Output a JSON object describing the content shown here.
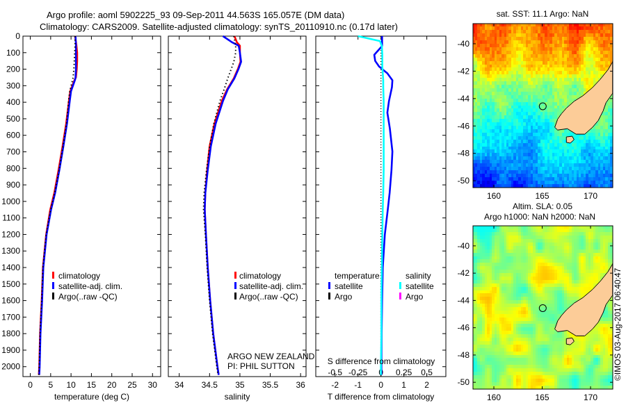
{
  "title": {
    "line1": "Argo profile: aoml 5902225_93 09-Sep-2011 44.563S 165.057E (DM data)",
    "line2": "Climatology: CARS2009. Satellite-adjusted climatology: synTS_20110910.nc (0.17d later)"
  },
  "annotation": {
    "program": "ARGO NEW ZEALAND",
    "pi": "PI: PHIL SUTTON",
    "credit": "©IMOS 03-Aug-2017 06:40:47"
  },
  "colors": {
    "climatology": "#ff0000",
    "satellite": "#0000ff",
    "argo": "#000000",
    "salinity_satellite": "#00ffff",
    "salinity_argo": "#ff00ff",
    "land": "#fccc98"
  },
  "chart_data": [
    {
      "type": "line",
      "id": "temperature",
      "xlabel": "temperature (deg C)",
      "ylabel": "",
      "xlim": [
        -1.8,
        32
      ],
      "ylim": [
        2060,
        0
      ],
      "xticks": [
        0,
        5,
        10,
        15,
        20,
        25,
        30
      ],
      "yticks": [
        0,
        100,
        200,
        300,
        400,
        500,
        600,
        700,
        800,
        900,
        1000,
        1100,
        1200,
        1300,
        1400,
        1500,
        1600,
        1700,
        1800,
        1900,
        2000
      ],
      "legend": [
        "climatology",
        "satellite-adj. clim.",
        "Argo(..raw -QC)"
      ],
      "legend_placement": "center-left",
      "depth": [
        0,
        50,
        100,
        150,
        200,
        250,
        263,
        333,
        390,
        530,
        670,
        808,
        948,
        1050,
        1200,
        1400,
        1600,
        1800,
        2000,
        2050
      ],
      "series": [
        {
          "name": "climatology",
          "color": "#ff0000",
          "values": [
            11.0,
            11.3,
            11.5,
            11.5,
            11.4,
            11.2,
            10.9,
            9.8,
            9.5,
            8.8,
            7.9,
            6.95,
            5.9,
            4.9,
            3.9,
            3.1,
            2.8,
            2.4,
            2.2,
            2.1
          ]
        },
        {
          "name": "satellite-adj. clim.",
          "color": "#0000ff",
          "values": [
            11.1,
            11.2,
            11.2,
            11.2,
            11.2,
            11.1,
            11.0,
            10.0,
            9.7,
            9.0,
            8.1,
            7.15,
            6.1,
            5.1,
            4.0,
            3.2,
            2.9,
            2.5,
            2.3,
            2.2
          ]
        },
        {
          "name": "Argo(..raw -QC)",
          "color": "#000000",
          "dotted": true,
          "values": [
            11.0,
            11.0,
            10.9,
            10.8,
            10.7,
            10.5,
            10.4,
            9.7,
            9.4,
            8.9,
            8.0,
            7.1,
            6.0,
            5.0,
            3.9,
            3.1,
            2.8,
            2.4,
            2.2,
            2.1
          ]
        }
      ]
    },
    {
      "type": "line",
      "id": "salinity",
      "xlabel": "salinity",
      "xlim": [
        33.82,
        36.09
      ],
      "ylim": [
        2060,
        0
      ],
      "xticks": [
        34,
        34.5,
        35,
        35.5,
        36
      ],
      "legend": [
        "climatology",
        "satellite-adj. clim.",
        "Argo(..raw -QC)"
      ],
      "legend_placement": "center-left",
      "depth": [
        0,
        37,
        58,
        100,
        155,
        196,
        255,
        322,
        393,
        530,
        668,
        810,
        948,
        1048,
        1200,
        1400,
        1600,
        1800,
        2000,
        2050
      ],
      "series": [
        {
          "name": "climatology",
          "color": "#ff0000",
          "values": [
            34.91,
            34.95,
            35.0,
            35.0,
            35.01,
            34.97,
            34.9,
            34.79,
            34.7,
            34.58,
            34.5,
            34.46,
            34.43,
            34.42,
            34.44,
            34.47,
            34.51,
            34.56,
            34.63,
            34.65
          ]
        },
        {
          "name": "satellite-adj. clim.",
          "color": "#0000ff",
          "values": [
            34.72,
            34.87,
            34.98,
            35.0,
            35.02,
            34.98,
            34.91,
            34.8,
            34.72,
            34.6,
            34.52,
            34.47,
            34.43,
            34.42,
            34.44,
            34.47,
            34.51,
            34.56,
            34.63,
            34.65
          ]
        },
        {
          "name": "Argo(..raw -QC)",
          "color": "#000000",
          "dotted": true,
          "values": [
            34.9,
            34.92,
            34.93,
            34.93,
            34.9,
            34.86,
            34.8,
            34.74,
            34.67,
            34.57,
            34.5,
            34.45,
            34.41,
            34.4,
            34.43,
            34.46,
            34.5,
            34.55,
            34.62,
            34.64
          ]
        }
      ]
    },
    {
      "type": "line",
      "id": "difference",
      "xlabel": "T difference from climatology",
      "x2label": "S difference from climatology",
      "xlim": [
        -2.84,
        2.83
      ],
      "ylim": [
        2060,
        0
      ],
      "xticks": [
        -2,
        -1,
        0,
        1,
        2
      ],
      "x2ticks": [
        "-0.5",
        "-0.25",
        "0",
        "0.25",
        "0.5"
      ],
      "x2tick_values": [
        -0.5,
        -0.25,
        0,
        0.25,
        0.5
      ],
      "s_to_t_scale": 4,
      "legend_headers": [
        "temperature",
        "salinity"
      ],
      "legend": [
        "satellite",
        "Argo",
        "satellite",
        "Argo"
      ],
      "depth": [
        0,
        30,
        60,
        113,
        150,
        184,
        225,
        267,
        309,
        393,
        463,
        560,
        698,
        810,
        948,
        1048,
        1200,
        1400,
        1600,
        1800,
        2000,
        2050
      ],
      "series": [
        {
          "name": "T satellite",
          "color": "#0000ff",
          "values": [
            0.05,
            0.05,
            0.05,
            -0.29,
            -0.25,
            -0.08,
            0.28,
            0.5,
            0.48,
            0.35,
            0.28,
            0.39,
            0.5,
            0.46,
            0.38,
            0.3,
            0.17,
            0.08,
            0.05,
            0.03,
            0.02,
            0.02
          ]
        },
        {
          "name": "S satellite",
          "color": "#00ffff",
          "salinity": true,
          "values": [
            -0.25,
            -0.01,
            0.01,
            0.015,
            0.015,
            0.015,
            0.02,
            0.025,
            0.025,
            0.03,
            0.03,
            0.03,
            0.03,
            0.03,
            0.025,
            0.02,
            0.015,
            0.01,
            0.005,
            0.005,
            0.0,
            0.0
          ]
        }
      ]
    },
    {
      "type": "heatmap",
      "id": "sst_map",
      "title": "sat. SST: 11.1 Argo: NaN",
      "xlim": [
        157.84,
        172.3
      ],
      "ylim": [
        -50.5,
        -38.53
      ],
      "xticks": [
        160,
        165,
        170
      ],
      "yticks": [
        -40,
        -42,
        -44,
        -46,
        -48,
        -50
      ],
      "float_position": [
        165.057,
        -44.563
      ],
      "colormap": "jet",
      "value_range_degC": [
        7,
        15
      ]
    },
    {
      "type": "heatmap",
      "id": "sla_map",
      "title": "Altim. SLA: 0.05",
      "subtitle": "Argo h1000: NaN h2000: NaN",
      "xlim": [
        157.84,
        172.3
      ],
      "ylim": [
        -50.5,
        -38.53
      ],
      "xticks": [
        160,
        165,
        170
      ],
      "yticks": [
        -40,
        -42,
        -44,
        -46,
        -48,
        -50
      ],
      "float_position": [
        165.057,
        -44.563
      ],
      "colormap": "jet"
    }
  ]
}
